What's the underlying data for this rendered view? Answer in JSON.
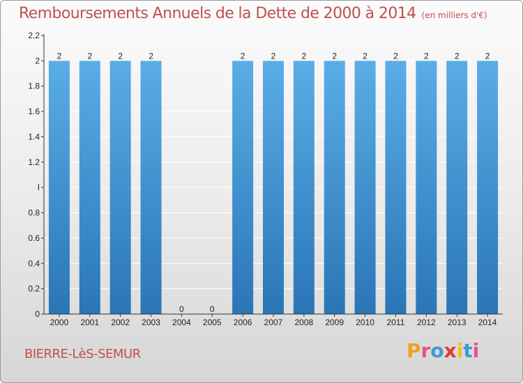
{
  "header": {
    "title": "Remboursements Annuels de la Dette de 2000 à 2014",
    "subtitle": "(en milliers d'€)"
  },
  "footer": {
    "commune": "BIERRE-LèS-SEMUR",
    "logo_letters": [
      "P",
      "r",
      "o",
      "x",
      "i",
      "t",
      "i"
    ],
    "logo_colors": [
      "#f0a020",
      "#e8508a",
      "#3b9ad9",
      "#e03a2a",
      "#f0c020",
      "#3b9ad9",
      "#e8508a"
    ]
  },
  "colors": {
    "bar_top": "#5aade6",
    "bar_bottom": "#2a75b6",
    "axis": "#333333",
    "gridline": "#ffffff"
  },
  "chart_data": {
    "type": "bar",
    "categories": [
      "2000",
      "2001",
      "2002",
      "2003",
      "2004",
      "2005",
      "2006",
      "2007",
      "2008",
      "2009",
      "2010",
      "2011",
      "2012",
      "2013",
      "2014"
    ],
    "values": [
      2,
      2,
      2,
      2,
      0,
      0,
      2,
      2,
      2,
      2,
      2,
      2,
      2,
      2,
      2
    ],
    "data_labels": [
      "2",
      "2",
      "2",
      "2",
      "0",
      "0",
      "2",
      "2",
      "2",
      "2",
      "2",
      "2",
      "2",
      "2",
      "2"
    ],
    "yticks": [
      0,
      0.2,
      0.4,
      0.6,
      0.8,
      1,
      1.2,
      1.4,
      1.6,
      1.8,
      2,
      2.2
    ],
    "ytick_labels": [
      "0",
      "0.2",
      "0.4",
      "0.6",
      "0.8",
      "I",
      "1.2",
      "1.4",
      "1.6",
      "1.8",
      "2",
      "2.2"
    ],
    "ylim": [
      0,
      2.2
    ],
    "grid": true
  }
}
